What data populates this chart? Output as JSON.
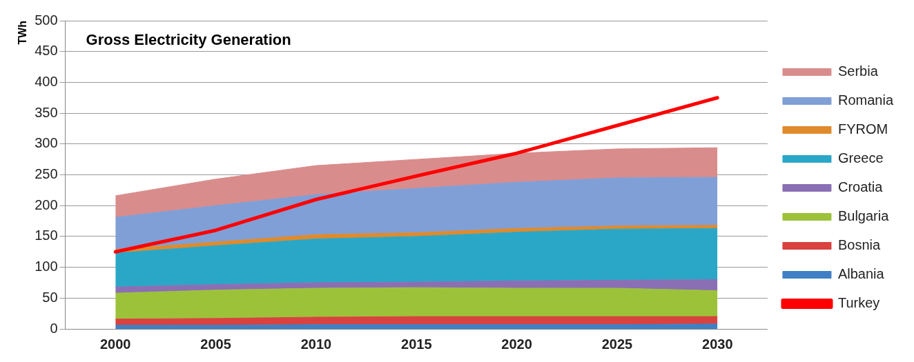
{
  "chart_data": {
    "type": "area",
    "title": "Gross Electricity Generation",
    "ylabel": "TWh",
    "stacked": true,
    "categories": [
      "2000",
      "2005",
      "2010",
      "2015",
      "2020",
      "2025",
      "2030"
    ],
    "series": [
      {
        "name": "Albania",
        "color": "#3f7fc4",
        "values": [
          6,
          6,
          7,
          7,
          7,
          7,
          8
        ]
      },
      {
        "name": "Bosnia",
        "color": "#d9423f",
        "values": [
          10,
          11,
          12,
          13,
          13,
          13,
          12
        ]
      },
      {
        "name": "Bulgaria",
        "color": "#9cc23a",
        "values": [
          42,
          46,
          47,
          47,
          46,
          46,
          42
        ]
      },
      {
        "name": "Croatia",
        "color": "#8a6fb5",
        "values": [
          10,
          9,
          9,
          9,
          12,
          13,
          18
        ]
      },
      {
        "name": "Greece",
        "color": "#2aa7c6",
        "values": [
          55,
          63,
          71,
          74,
          79,
          83,
          83
        ]
      },
      {
        "name": "FYROM",
        "color": "#e08a2c",
        "values": [
          6,
          6,
          7,
          6,
          6,
          5,
          5
        ]
      },
      {
        "name": "Romania",
        "color": "#7f9fd6",
        "values": [
          52,
          59,
          65,
          72,
          75,
          78,
          78
        ]
      },
      {
        "name": "Serbia",
        "color": "#d98c8c",
        "values": [
          35,
          43,
          47,
          47,
          47,
          47,
          48
        ]
      },
      {
        "name": "Turkey",
        "type": "line",
        "color": "#ff0000",
        "values": [
          125,
          160,
          210,
          248,
          285,
          330,
          375
        ]
      }
    ],
    "ylim": [
      0,
      500
    ],
    "yticks": [
      0,
      50,
      100,
      150,
      200,
      250,
      300,
      350,
      400,
      450,
      500
    ],
    "grid": "y",
    "legend": "right"
  }
}
